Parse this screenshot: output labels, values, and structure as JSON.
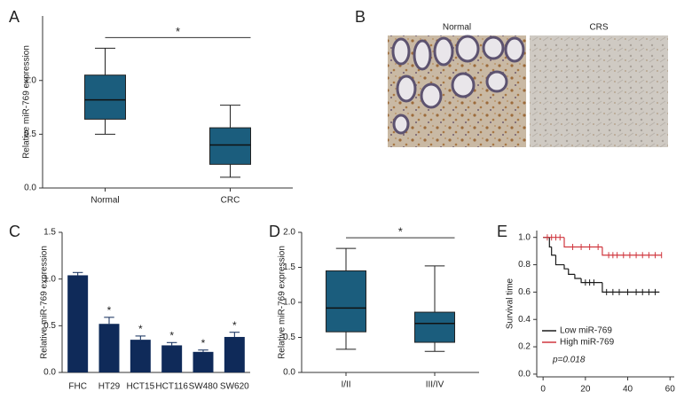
{
  "chart_data": [
    {
      "type": "box",
      "panel": "A",
      "ylabel": "Relative miR-769 expression",
      "color": "#1b5d7d",
      "categories": [
        "Normal",
        "CRC"
      ],
      "stats": [
        {
          "min": 0.5,
          "q1": 0.64,
          "median": 0.82,
          "q3": 1.05,
          "max": 1.3
        },
        {
          "min": 0.1,
          "q1": 0.22,
          "median": 0.4,
          "q3": 0.56,
          "max": 0.77
        }
      ],
      "significance": "*",
      "ylim": [
        0,
        1.6
      ],
      "yticks": [
        {
          "value": 0,
          "label": "0.0"
        },
        0.5,
        {
          "value": 1,
          "label": "1.0"
        }
      ]
    },
    {
      "type": "bar",
      "panel": "C",
      "ylabel": "Relative miR-769 expression",
      "color": "#0f2a59",
      "categories": [
        "FHC",
        "HT29",
        "HCT15",
        "HCT116",
        "SW480",
        "SW620"
      ],
      "values": [
        1.04,
        0.52,
        0.35,
        0.29,
        0.22,
        0.38
      ],
      "errors": [
        0.03,
        0.07,
        0.04,
        0.03,
        0.02,
        0.05
      ],
      "annotations": [
        null,
        "*",
        "*",
        "*",
        "*",
        "*"
      ],
      "ylim": [
        0,
        1.5
      ],
      "yticks": [
        {
          "value": 0,
          "label": "0.0"
        },
        0.5,
        {
          "value": 1,
          "label": "1.0"
        },
        1.5
      ]
    },
    {
      "type": "box",
      "panel": "D",
      "ylabel": "Relative miR-769 expression",
      "color": "#1b5d7d",
      "categories": [
        "I/II",
        "III/IV"
      ],
      "stats": [
        {
          "min": 0.33,
          "q1": 0.58,
          "median": 0.92,
          "q3": 1.45,
          "max": 1.77
        },
        {
          "min": 0.3,
          "q1": 0.43,
          "median": 0.7,
          "q3": 0.86,
          "max": 1.52
        }
      ],
      "significance": "*",
      "ylim": [
        0,
        2
      ],
      "yticks": [
        {
          "value": 0,
          "label": "0.0"
        },
        0.5,
        {
          "value": 1,
          "label": "1.0"
        },
        1.5,
        {
          "value": 2,
          "label": "2.0"
        }
      ]
    },
    {
      "type": "survival",
      "panel": "E",
      "ylabel": "Survival time",
      "annotation": "p=0.018",
      "legend": "lower-left",
      "series": [
        {
          "name": "Low miR-769",
          "color": "#1a1a1a",
          "x": [
            0,
            3,
            4,
            6,
            10,
            12,
            15,
            18,
            28,
            55
          ],
          "values": [
            1.0,
            0.93,
            0.87,
            0.8,
            0.77,
            0.73,
            0.7,
            0.67,
            0.6,
            0.6
          ],
          "censored": [
            20,
            22,
            24,
            30,
            33,
            36,
            40,
            44,
            47,
            50,
            53
          ]
        },
        {
          "name": "High miR-769",
          "color": "#d0373f",
          "x": [
            0,
            10,
            28,
            56
          ],
          "values": [
            1.0,
            0.93,
            0.87,
            0.87
          ],
          "censored": [
            2,
            4,
            6,
            8,
            14,
            18,
            22,
            26,
            31,
            33,
            35,
            38,
            41,
            44,
            47,
            50,
            53,
            56
          ]
        }
      ],
      "xlim": [
        -3,
        62
      ],
      "xticks": [
        0,
        20,
        40,
        60
      ],
      "ylim": [
        -0.02,
        1.05
      ],
      "yticks": [
        {
          "value": 0,
          "label": "0.0"
        },
        0.2,
        0.4,
        0.6,
        0.8,
        {
          "value": 1,
          "label": "1.0"
        }
      ]
    }
  ],
  "image_panel": {
    "panel": "B",
    "labels": [
      "Normal",
      "CRS"
    ]
  }
}
